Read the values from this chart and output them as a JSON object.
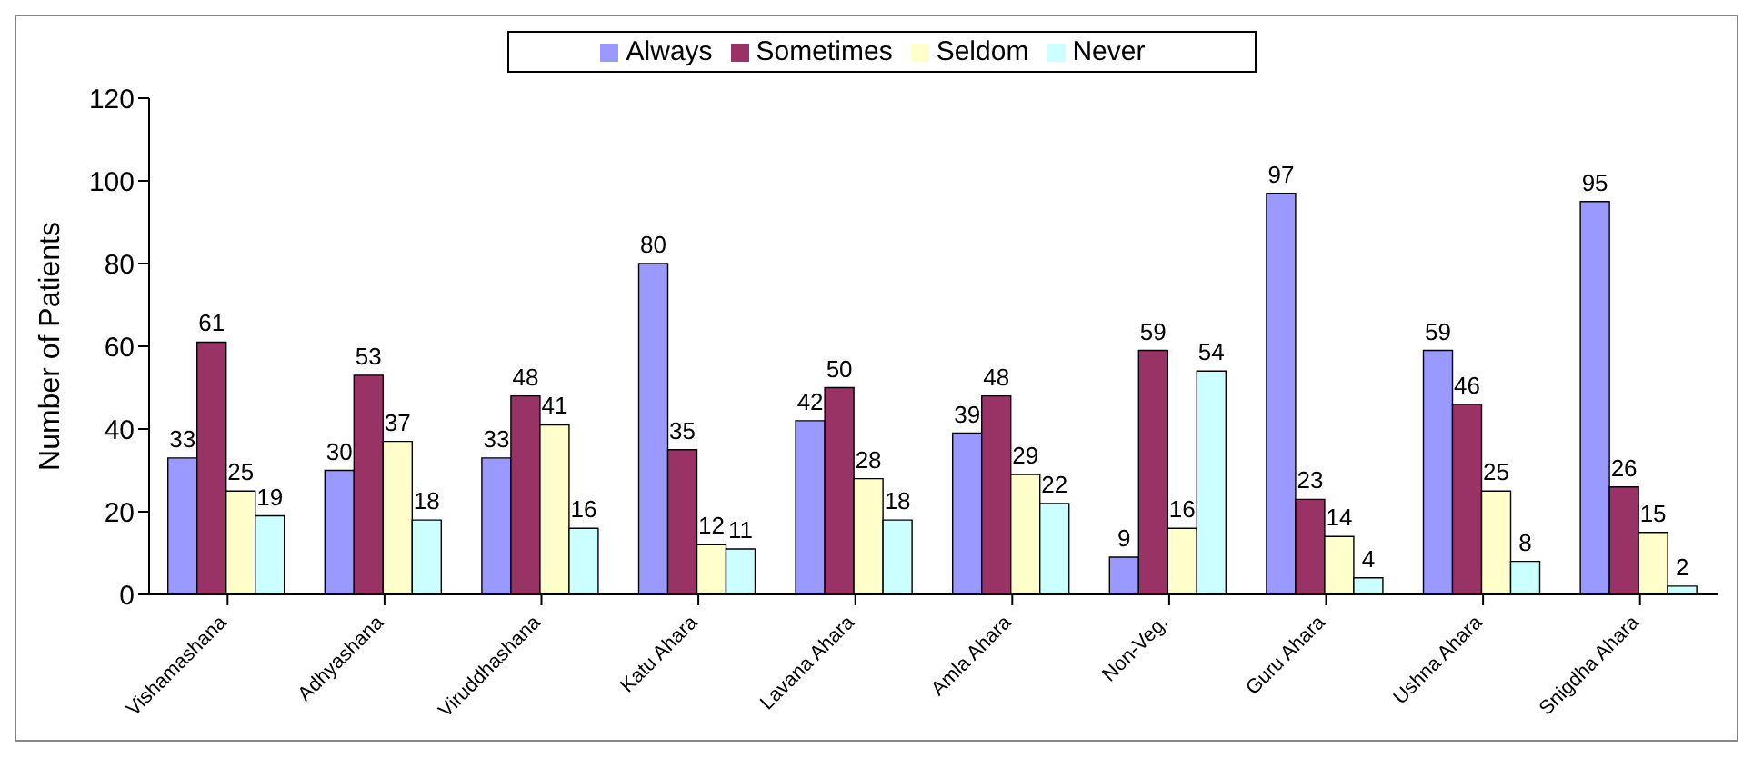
{
  "chart_data": {
    "type": "bar",
    "ylabel": "Number of Patients",
    "categories": [
      "Vishamashana",
      "Adhyashana",
      "Viruddhashana",
      "Katu Ahara",
      "Lavana Ahara",
      "Amla Ahara",
      "Non-Veg.",
      "Guru Ahara",
      "Ushna Ahara",
      "Snigdha Ahara"
    ],
    "series": [
      {
        "name": "Always",
        "color": "#9999ff",
        "values": [
          33,
          30,
          33,
          80,
          42,
          39,
          9,
          97,
          59,
          95
        ]
      },
      {
        "name": "Sometimes",
        "color": "#993366",
        "values": [
          61,
          53,
          48,
          35,
          50,
          48,
          59,
          23,
          46,
          26
        ]
      },
      {
        "name": "Seldom",
        "color": "#ffffcc",
        "values": [
          25,
          37,
          41,
          12,
          28,
          29,
          16,
          14,
          25,
          15
        ]
      },
      {
        "name": "Never",
        "color": "#ccffff",
        "values": [
          19,
          18,
          16,
          11,
          18,
          22,
          54,
          4,
          8,
          2
        ]
      }
    ],
    "ylim": [
      0,
      120
    ],
    "yticks": [
      0,
      20,
      40,
      60,
      80,
      100,
      120
    ],
    "data_labels": true,
    "legend": "top",
    "grid": false
  }
}
